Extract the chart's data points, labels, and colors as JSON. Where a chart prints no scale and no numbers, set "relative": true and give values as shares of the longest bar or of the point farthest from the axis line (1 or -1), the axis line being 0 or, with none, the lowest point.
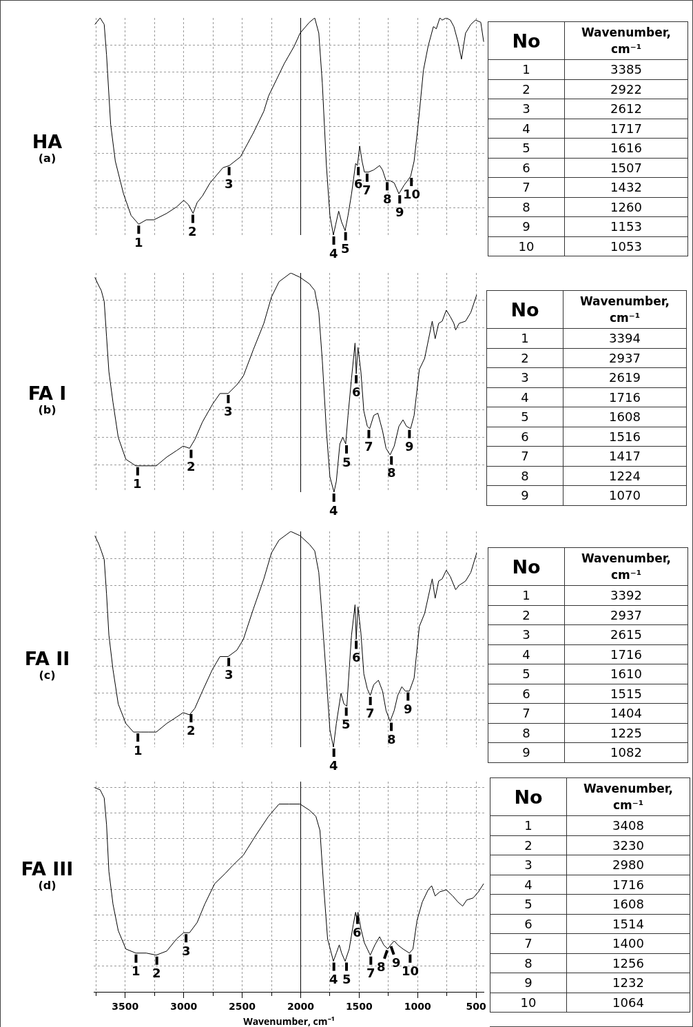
{
  "chart_data": [
    {
      "type": "line",
      "title": "HA",
      "subtitle": "(a)",
      "relative": true,
      "grid": true,
      "tick_labels": false,
      "line_style": "solid",
      "marker": "none",
      "xlim": [
        3770,
        430
      ],
      "xticks": [
        3500,
        3000,
        2500,
        2000,
        1500,
        1000,
        500
      ],
      "ref_lines": [
        {
          "axis": "x",
          "value": 2000,
          "color": "#000000"
        }
      ],
      "series": [
        {
          "color": "#000000",
          "x": [
            3760,
            3715,
            3680,
            3660,
            3625,
            3585,
            3515,
            3450,
            3385,
            3320,
            3255,
            3145,
            3060,
            3000,
            2960,
            2920,
            2885,
            2840,
            2775,
            2665,
            2610,
            2515,
            2405,
            2315,
            2275,
            2140,
            2055,
            2005,
            1925,
            1880,
            1845,
            1815,
            1780,
            1750,
            1720,
            1700,
            1675,
            1650,
            1620,
            1595,
            1565,
            1530,
            1515,
            1495,
            1475,
            1455,
            1420,
            1375,
            1325,
            1300,
            1270,
            1235,
            1200,
            1160,
            1115,
            1060,
            1030,
            995,
            950,
            910,
            865,
            840,
            810,
            790,
            755,
            720,
            690,
            655,
            625,
            590,
            545,
            505,
            460,
            435
          ],
          "values": [
            0.97,
            1.0,
            0.97,
            0.83,
            0.51,
            0.34,
            0.19,
            0.09,
            0.05,
            0.07,
            0.07,
            0.1,
            0.13,
            0.16,
            0.14,
            0.1,
            0.15,
            0.18,
            0.24,
            0.31,
            0.32,
            0.36,
            0.47,
            0.57,
            0.64,
            0.79,
            0.87,
            0.93,
            0.98,
            1.0,
            0.93,
            0.7,
            0.32,
            0.09,
            0.0,
            0.05,
            0.11,
            0.06,
            0.02,
            0.09,
            0.19,
            0.33,
            0.32,
            0.41,
            0.34,
            0.29,
            0.29,
            0.3,
            0.32,
            0.3,
            0.25,
            0.25,
            0.24,
            0.19,
            0.23,
            0.27,
            0.34,
            0.51,
            0.76,
            0.87,
            0.96,
            0.95,
            1.0,
            0.99,
            1.0,
            0.99,
            0.96,
            0.89,
            0.81,
            0.93,
            0.97,
            0.99,
            0.98,
            0.89
          ]
        }
      ],
      "annotations": [
        {
          "text": "1",
          "x": 3385,
          "y": 0.05
        },
        {
          "text": "2",
          "x": 2922,
          "y": 0.1
        },
        {
          "text": "3",
          "x": 2612,
          "y": 0.32
        },
        {
          "text": "4",
          "x": 1717,
          "y": 0.0
        },
        {
          "text": "5",
          "x": 1616,
          "y": 0.02
        },
        {
          "text": "6",
          "x": 1507,
          "y": 0.32
        },
        {
          "text": "7",
          "x": 1432,
          "y": 0.29
        },
        {
          "text": "8",
          "x": 1260,
          "y": 0.25
        },
        {
          "text": "9",
          "x": 1153,
          "y": 0.19
        },
        {
          "text": "10",
          "x": 1053,
          "y": 0.27
        },
        "No",
        "Wavenumber, cm⁻¹",
        "1",
        "3385",
        "2",
        "2922",
        "3",
        "2612",
        "4",
        "1717",
        "5",
        "1616",
        "6",
        "1507",
        "7",
        "1432",
        "8",
        "1260",
        "9",
        "1153",
        "10",
        "1053"
      ]
    },
    {
      "type": "line",
      "title": "FA I",
      "subtitle": "(b)",
      "relative": true,
      "grid": true,
      "tick_labels": false,
      "line_style": "solid",
      "marker": "none",
      "xlim": [
        3770,
        430
      ],
      "xticks": [
        3500,
        3000,
        2500,
        2000,
        1500,
        1000,
        500
      ],
      "ref_lines": [
        {
          "axis": "x",
          "value": 2000,
          "color": "#000000"
        }
      ],
      "series": [
        {
          "color": "#000000",
          "x": [
            3760,
            3725,
            3705,
            3680,
            3660,
            3640,
            3605,
            3560,
            3495,
            3410,
            3300,
            3235,
            3145,
            3060,
            3005,
            2950,
            2905,
            2840,
            2755,
            2690,
            2620,
            2545,
            2490,
            2405,
            2315,
            2250,
            2185,
            2085,
            2005,
            1925,
            1880,
            1845,
            1815,
            1780,
            1750,
            1715,
            1695,
            1665,
            1640,
            1615,
            1595,
            1565,
            1535,
            1525,
            1510,
            1485,
            1460,
            1430,
            1410,
            1375,
            1340,
            1300,
            1270,
            1235,
            1200,
            1160,
            1125,
            1095,
            1060,
            1030,
            985,
            940,
            875,
            850,
            820,
            790,
            755,
            720,
            690,
            675,
            645,
            590,
            545,
            495
          ],
          "values": [
            0.98,
            0.94,
            0.92,
            0.87,
            0.71,
            0.55,
            0.41,
            0.25,
            0.15,
            0.12,
            0.12,
            0.12,
            0.16,
            0.19,
            0.21,
            0.2,
            0.24,
            0.32,
            0.4,
            0.45,
            0.45,
            0.49,
            0.53,
            0.65,
            0.77,
            0.89,
            0.96,
            1.0,
            0.98,
            0.95,
            0.92,
            0.82,
            0.6,
            0.28,
            0.07,
            0.0,
            0.05,
            0.22,
            0.25,
            0.22,
            0.35,
            0.52,
            0.68,
            0.54,
            0.66,
            0.55,
            0.37,
            0.3,
            0.29,
            0.35,
            0.36,
            0.28,
            0.2,
            0.17,
            0.21,
            0.3,
            0.33,
            0.3,
            0.29,
            0.35,
            0.56,
            0.61,
            0.78,
            0.7,
            0.77,
            0.78,
            0.83,
            0.8,
            0.77,
            0.74,
            0.77,
            0.78,
            0.82,
            0.9
          ]
        }
      ],
      "annotations": [
        {
          "text": "1",
          "x": 3394,
          "y": 0.12
        },
        {
          "text": "2",
          "x": 2937,
          "y": 0.2
        },
        {
          "text": "3",
          "x": 2619,
          "y": 0.45
        },
        {
          "text": "4",
          "x": 1716,
          "y": 0.0
        },
        {
          "text": "5",
          "x": 1608,
          "y": 0.22
        },
        {
          "text": "6",
          "x": 1525,
          "y": 0.54
        },
        {
          "text": "7",
          "x": 1417,
          "y": 0.29
        },
        {
          "text": "8",
          "x": 1224,
          "y": 0.17
        },
        {
          "text": "9",
          "x": 1070,
          "y": 0.29
        },
        "No",
        "Wavenumber, cm⁻¹",
        "1",
        "3394",
        "2",
        "2937",
        "3",
        "2619",
        "4",
        "1716",
        "5",
        "1608",
        "6",
        "1516",
        "7",
        "1417",
        "8",
        "1224",
        "9",
        "1070"
      ]
    },
    {
      "type": "line",
      "title": "FA II",
      "subtitle": "(c)",
      "relative": true,
      "grid": true,
      "tick_labels": false,
      "line_style": "solid",
      "marker": "none",
      "xlim": [
        3770,
        430
      ],
      "xticks": [
        3500,
        3000,
        2500,
        2000,
        1500,
        1000,
        500
      ],
      "ref_lines": [
        {
          "axis": "x",
          "value": 2000,
          "color": "#000000"
        }
      ],
      "series": [
        {
          "color": "#000000",
          "x": [
            3760,
            3725,
            3705,
            3680,
            3660,
            3640,
            3605,
            3560,
            3495,
            3430,
            3365,
            3300,
            3235,
            3145,
            3060,
            3005,
            2950,
            2905,
            2840,
            2755,
            2690,
            2620,
            2545,
            2490,
            2405,
            2315,
            2250,
            2185,
            2085,
            2005,
            1925,
            1880,
            1845,
            1815,
            1780,
            1750,
            1720,
            1695,
            1655,
            1630,
            1605,
            1585,
            1565,
            1535,
            1525,
            1510,
            1485,
            1460,
            1430,
            1405,
            1375,
            1335,
            1300,
            1270,
            1235,
            1200,
            1170,
            1135,
            1105,
            1070,
            1030,
            985,
            940,
            875,
            850,
            820,
            790,
            755,
            720,
            690,
            675,
            645,
            590,
            545,
            495
          ],
          "values": [
            0.98,
            0.94,
            0.91,
            0.87,
            0.71,
            0.52,
            0.36,
            0.2,
            0.11,
            0.07,
            0.07,
            0.07,
            0.07,
            0.11,
            0.14,
            0.16,
            0.15,
            0.18,
            0.26,
            0.36,
            0.42,
            0.42,
            0.45,
            0.5,
            0.64,
            0.78,
            0.9,
            0.96,
            1.0,
            0.98,
            0.94,
            0.91,
            0.81,
            0.59,
            0.32,
            0.08,
            0.0,
            0.11,
            0.25,
            0.2,
            0.19,
            0.36,
            0.52,
            0.66,
            0.5,
            0.65,
            0.53,
            0.34,
            0.27,
            0.24,
            0.29,
            0.31,
            0.26,
            0.17,
            0.12,
            0.17,
            0.24,
            0.28,
            0.26,
            0.26,
            0.32,
            0.56,
            0.62,
            0.78,
            0.69,
            0.77,
            0.78,
            0.82,
            0.79,
            0.75,
            0.73,
            0.75,
            0.77,
            0.81,
            0.9
          ]
        }
      ],
      "annotations": [
        {
          "text": "1",
          "x": 3392,
          "y": 0.07
        },
        {
          "text": "2",
          "x": 2937,
          "y": 0.16
        },
        {
          "text": "3",
          "x": 2615,
          "y": 0.42
        },
        {
          "text": "4",
          "x": 1716,
          "y": 0.0
        },
        {
          "text": "5",
          "x": 1610,
          "y": 0.19
        },
        {
          "text": "6",
          "x": 1525,
          "y": 0.5
        },
        {
          "text": "7",
          "x": 1404,
          "y": 0.24
        },
        {
          "text": "8",
          "x": 1225,
          "y": 0.12
        },
        {
          "text": "9",
          "x": 1082,
          "y": 0.26
        },
        "No",
        "Wavenumber, cm⁻¹",
        "1",
        "3392",
        "2",
        "2937",
        "3",
        "2615",
        "4",
        "1716",
        "5",
        "1610",
        "6",
        "1515",
        "7",
        "1404",
        "8",
        "1225",
        "9",
        "1082"
      ]
    },
    {
      "type": "line",
      "title": "FA III",
      "subtitle": "(d)",
      "xlabel": "Wavenumber, cm⁻¹",
      "relative": true,
      "grid": true,
      "tick_labels": "x",
      "line_style": "solid",
      "marker": "none",
      "xlim": [
        3770,
        430
      ],
      "xticks": [
        3500,
        3000,
        2500,
        2000,
        1500,
        1000,
        500
      ],
      "ref_lines": [
        {
          "axis": "x",
          "value": 2000,
          "color": "#000000"
        }
      ],
      "series": [
        {
          "color": "#000000",
          "x": [
            3760,
            3715,
            3680,
            3660,
            3640,
            3605,
            3560,
            3495,
            3410,
            3320,
            3235,
            3145,
            3060,
            3000,
            2950,
            2885,
            2820,
            2735,
            2645,
            2580,
            2490,
            2380,
            2275,
            2185,
            2100,
            2005,
            1925,
            1870,
            1835,
            1805,
            1770,
            1720,
            1695,
            1670,
            1650,
            1620,
            1585,
            1550,
            1530,
            1520,
            1510,
            1485,
            1455,
            1405,
            1365,
            1325,
            1290,
            1255,
            1230,
            1200,
            1170,
            1125,
            1070,
            1040,
            1005,
            960,
            910,
            880,
            850,
            810,
            755,
            700,
            655,
            615,
            580,
            525,
            480,
            435
          ],
          "values": [
            1.0,
            0.99,
            0.95,
            0.82,
            0.59,
            0.43,
            0.3,
            0.21,
            0.19,
            0.19,
            0.18,
            0.2,
            0.26,
            0.29,
            0.29,
            0.34,
            0.43,
            0.53,
            0.58,
            0.62,
            0.67,
            0.77,
            0.86,
            0.92,
            0.92,
            0.92,
            0.89,
            0.86,
            0.79,
            0.53,
            0.26,
            0.15,
            0.19,
            0.23,
            0.19,
            0.15,
            0.21,
            0.33,
            0.39,
            0.36,
            0.39,
            0.31,
            0.24,
            0.18,
            0.23,
            0.27,
            0.23,
            0.21,
            0.23,
            0.25,
            0.23,
            0.21,
            0.19,
            0.21,
            0.35,
            0.44,
            0.5,
            0.52,
            0.47,
            0.49,
            0.5,
            0.47,
            0.44,
            0.42,
            0.45,
            0.46,
            0.49,
            0.53
          ]
        }
      ],
      "annotations": [
        {
          "text": "1",
          "x": 3408,
          "y": 0.19
        },
        {
          "text": "2",
          "x": 3230,
          "y": 0.18
        },
        {
          "text": "3",
          "x": 2980,
          "y": 0.29
        },
        {
          "text": "4",
          "x": 1716,
          "y": 0.15
        },
        {
          "text": "5",
          "x": 1608,
          "y": 0.15
        },
        {
          "text": "6",
          "x": 1514,
          "y": 0.38
        },
        {
          "text": "7",
          "x": 1400,
          "y": 0.18
        },
        {
          "text": "8",
          "x": 1256,
          "y": 0.21
        },
        {
          "text": "9",
          "x": 1232,
          "y": 0.23
        },
        {
          "text": "10",
          "x": 1064,
          "y": 0.19
        },
        "No",
        "Wavenumber, cm⁻¹",
        "1",
        "3408",
        "2",
        "3230",
        "3",
        "2980",
        "4",
        "1716",
        "5",
        "1608",
        "6",
        "1514",
        "7",
        "1400",
        "8",
        "1256",
        "9",
        "1232",
        "10",
        "1064"
      ]
    }
  ]
}
